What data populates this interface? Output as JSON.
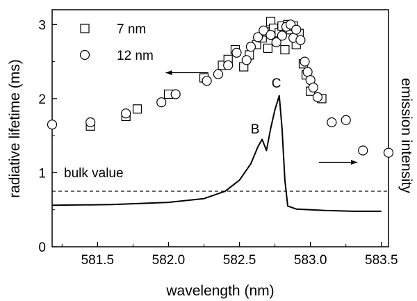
{
  "chart_data": {
    "type": "scatter",
    "xlabel": "wavelength (nm)",
    "ylabel": "radiative lifetime (ms)",
    "y2label": "emission intensity",
    "xlim": [
      581.18,
      583.55
    ],
    "ylim": [
      0,
      3.2
    ],
    "x_ticks": [
      581.5,
      582.0,
      582.5,
      583.0,
      583.5
    ],
    "x_tick_labels": [
      "581.5",
      "582.0",
      "582.5",
      "583.0",
      "583.5"
    ],
    "y_ticks": [
      0,
      1,
      2,
      3
    ],
    "y_tick_labels": [
      "0",
      "1",
      "2",
      "3"
    ],
    "grid": false,
    "legend_position": "top-left",
    "series": [
      {
        "name": "7 nm",
        "marker": "square",
        "points": [
          [
            581.45,
            1.63
          ],
          [
            581.7,
            1.76
          ],
          [
            581.78,
            1.86
          ],
          [
            582.0,
            2.06
          ],
          [
            582.25,
            2.28
          ],
          [
            582.38,
            2.45
          ],
          [
            582.42,
            2.53
          ],
          [
            582.47,
            2.66
          ],
          [
            582.53,
            2.43
          ],
          [
            582.57,
            2.59
          ],
          [
            582.62,
            2.73
          ],
          [
            582.66,
            2.82
          ],
          [
            582.68,
            2.9
          ],
          [
            582.7,
            2.68
          ],
          [
            582.72,
            3.04
          ],
          [
            582.74,
            2.95
          ],
          [
            582.76,
            2.83
          ],
          [
            582.78,
            2.89
          ],
          [
            582.8,
            2.98
          ],
          [
            582.82,
            2.66
          ],
          [
            582.84,
            3.0
          ],
          [
            582.86,
            2.93
          ],
          [
            582.88,
            2.98
          ],
          [
            582.9,
            2.73
          ],
          [
            582.92,
            2.88
          ],
          [
            582.95,
            2.47
          ],
          [
            582.97,
            2.32
          ],
          [
            583.0,
            2.1
          ],
          [
            583.08,
            2.0
          ]
        ]
      },
      {
        "name": "12 nm",
        "marker": "circle",
        "points": [
          [
            581.18,
            1.65
          ],
          [
            581.45,
            1.68
          ],
          [
            581.7,
            1.8
          ],
          [
            581.95,
            1.95
          ],
          [
            582.05,
            2.06
          ],
          [
            582.27,
            2.24
          ],
          [
            582.35,
            2.33
          ],
          [
            582.42,
            2.45
          ],
          [
            582.48,
            2.62
          ],
          [
            582.55,
            2.52
          ],
          [
            582.58,
            2.7
          ],
          [
            582.63,
            2.83
          ],
          [
            582.67,
            2.92
          ],
          [
            582.72,
            2.86
          ],
          [
            582.76,
            2.76
          ],
          [
            582.8,
            2.85
          ],
          [
            582.83,
            2.97
          ],
          [
            582.86,
            3.0
          ],
          [
            582.88,
            2.82
          ],
          [
            582.9,
            2.93
          ],
          [
            582.93,
            2.79
          ],
          [
            582.96,
            2.5
          ],
          [
            582.98,
            2.36
          ],
          [
            583.0,
            2.25
          ],
          [
            583.02,
            2.15
          ],
          [
            583.05,
            2.02
          ],
          [
            583.15,
            1.68
          ],
          [
            583.25,
            1.71
          ],
          [
            583.37,
            1.3
          ],
          [
            583.55,
            1.27
          ]
        ]
      },
      {
        "name": "emission intensity",
        "type": "line",
        "points": [
          [
            581.18,
            0.56
          ],
          [
            581.6,
            0.57
          ],
          [
            582.0,
            0.6
          ],
          [
            582.25,
            0.65
          ],
          [
            582.4,
            0.75
          ],
          [
            582.5,
            0.9
          ],
          [
            582.58,
            1.12
          ],
          [
            582.63,
            1.35
          ],
          [
            582.66,
            1.45
          ],
          [
            582.69,
            1.3
          ],
          [
            582.72,
            1.6
          ],
          [
            582.75,
            1.85
          ],
          [
            582.78,
            2.04
          ],
          [
            582.8,
            1.6
          ],
          [
            582.82,
            0.9
          ],
          [
            582.84,
            0.55
          ],
          [
            582.9,
            0.51
          ],
          [
            583.1,
            0.49
          ],
          [
            583.3,
            0.48
          ],
          [
            583.5,
            0.48
          ]
        ]
      }
    ],
    "reference_line": {
      "y": 0.75,
      "style": "dashed",
      "label": "bulk value"
    },
    "annotations": [
      {
        "text": "B",
        "x": 582.61,
        "y": 1.53
      },
      {
        "text": "C",
        "x": 582.76,
        "y": 2.15
      }
    ],
    "arrows": [
      {
        "from": [
          582.28,
          2.35
        ],
        "to": [
          581.98,
          2.35
        ]
      },
      {
        "from": [
          583.06,
          1.14
        ],
        "to": [
          583.33,
          1.14
        ]
      }
    ]
  }
}
